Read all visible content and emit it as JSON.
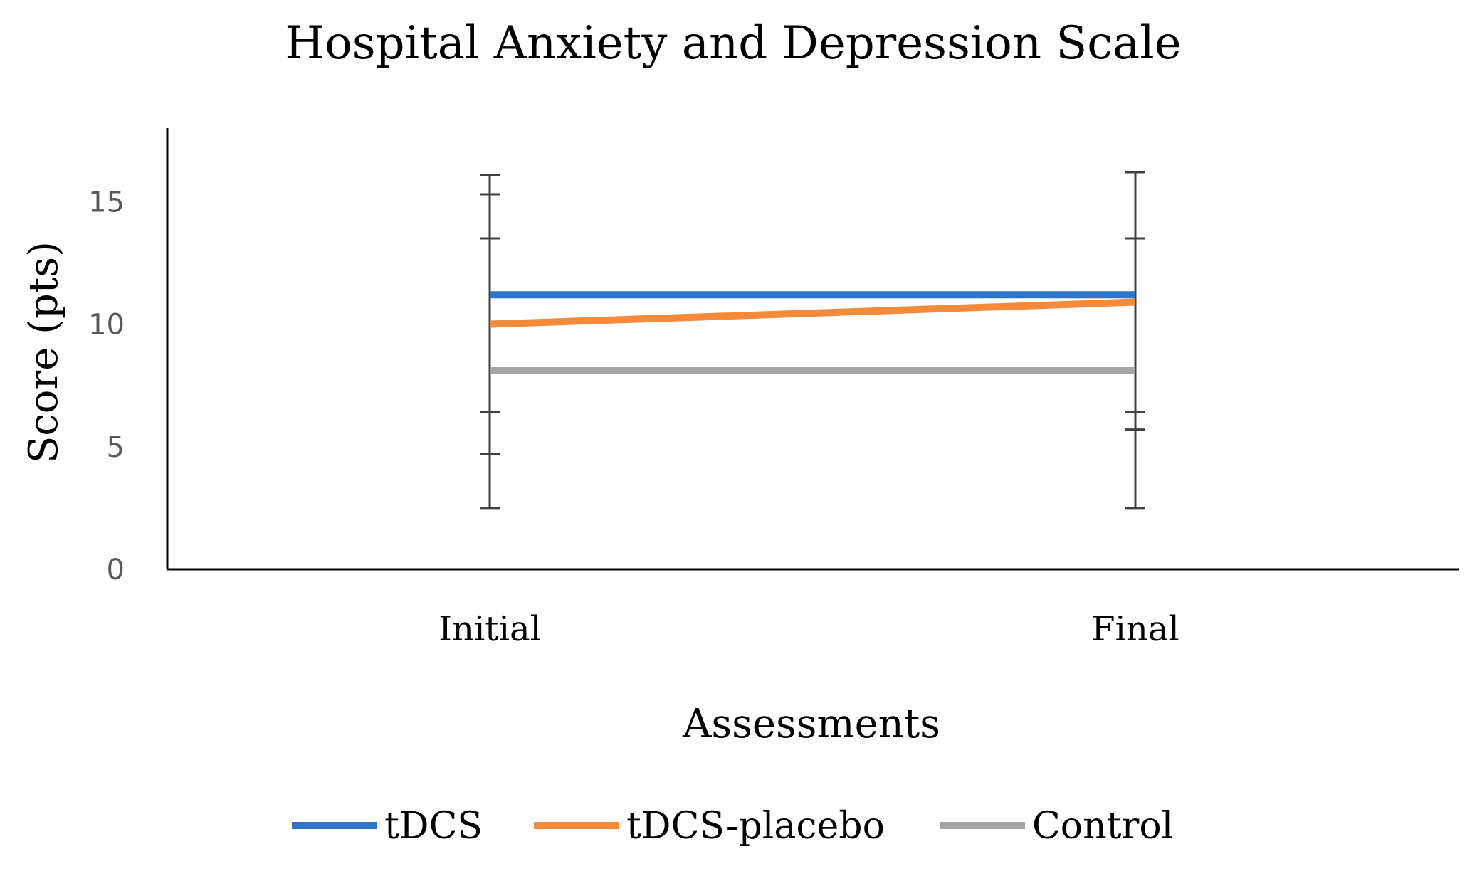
{
  "chart_data": {
    "type": "line",
    "title": "Hospital Anxiety and Depression Scale",
    "xlabel": "Assessments",
    "ylabel": "Score (pts)",
    "categories": [
      "Initial",
      "Final"
    ],
    "ylim": [
      0,
      18
    ],
    "yticks": [
      0,
      5,
      10,
      15
    ],
    "grid": false,
    "legend_position": "bottom",
    "series": [
      {
        "name": "tDCS",
        "color": "#2E75C8",
        "values": [
          11.2,
          11.2
        ],
        "error_low": [
          2.5,
          2.5
        ],
        "error_high": [
          16.1,
          16.2
        ]
      },
      {
        "name": "tDCS-placebo",
        "color": "#F58A3A",
        "values": [
          10,
          10.9
        ],
        "error_low": [
          4.7,
          5.7
        ],
        "error_high": [
          15.3,
          16.2
        ]
      },
      {
        "name": "Control",
        "color": "#A5A5A5",
        "values": [
          8.1,
          8.1
        ],
        "error_low": [
          6.4,
          6.4
        ],
        "error_high": [
          13.5,
          13.5
        ]
      }
    ]
  }
}
